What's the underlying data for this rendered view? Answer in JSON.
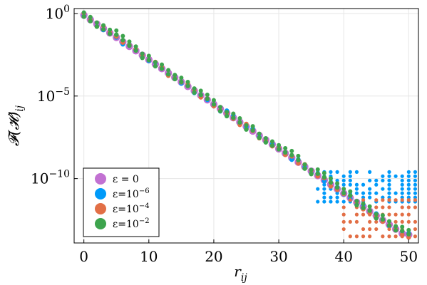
{
  "chart_data": {
    "type": "scatter",
    "xlabel": "r",
    "xlabel_sub": "ij",
    "ylabel": "𝓕(𝓗)",
    "ylabel_sub": "ij",
    "y_scale": "log10",
    "xlim": [
      -1.5,
      51.5
    ],
    "ylim_log10": [
      -13.9,
      0.3
    ],
    "x_ticks": [
      {
        "value": 0,
        "label": "0"
      },
      {
        "value": 10,
        "label": "10"
      },
      {
        "value": 20,
        "label": "20"
      },
      {
        "value": 30,
        "label": "30"
      },
      {
        "value": 40,
        "label": "40"
      },
      {
        "value": 50,
        "label": "50"
      }
    ],
    "y_ticks": [
      {
        "exp": 0,
        "base": "10",
        "sup": "0"
      },
      {
        "exp": -5,
        "base": "10",
        "sup": "−5"
      },
      {
        "exp": -10,
        "base": "10",
        "sup": "−10"
      }
    ],
    "legend_position": "bottom-left",
    "grid": true,
    "series": [
      {
        "name": "ε = 0",
        "legend_base": "ε = 0",
        "legend_sup": "",
        "color": "#c271d2",
        "trend": {
          "slope": -0.27,
          "intercept": -0.1,
          "floor": -13.4
        },
        "spread": []
      },
      {
        "name": "ε=10−6",
        "legend_base": "ε=10",
        "legend_sup": "−6",
        "color": "#009af9",
        "trend": {
          "slope": -0.27,
          "intercept": -0.1,
          "floor": -13.4
        },
        "spread": [
          {
            "from": 36,
            "to": 51,
            "top": -9.6,
            "bottom": -11.4,
            "density": 8
          }
        ]
      },
      {
        "name": "ε=10−4",
        "legend_base": "ε=10",
        "legend_sup": "−4",
        "color": "#e26f46",
        "trend": {
          "slope": -0.27,
          "intercept": -0.1,
          "floor": -13.4
        },
        "spread": [
          {
            "from": 40,
            "to": 51,
            "top": -11.3,
            "bottom": -13.5,
            "density": 6
          }
        ]
      },
      {
        "name": "ε=10−2",
        "legend_base": "ε=10",
        "legend_sup": "−2",
        "color": "#3da44d",
        "trend": {
          "slope": -0.27,
          "intercept": -0.1,
          "floor": -13.4
        },
        "spread": []
      }
    ]
  }
}
